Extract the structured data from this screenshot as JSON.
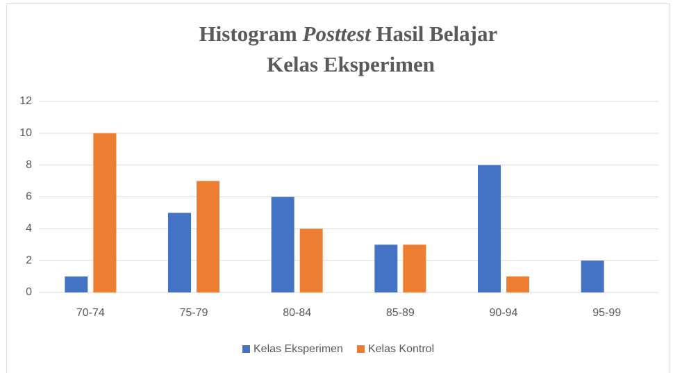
{
  "chart_data": {
    "type": "bar",
    "title": [
      "Histogram",
      "Posttest",
      "Hasil Belajar",
      "Kelas Eksperimen"
    ],
    "categories": [
      "70-74",
      "75-79",
      "80-84",
      "85-89",
      "90-94",
      "95-99"
    ],
    "series": [
      {
        "name": "Kelas Eksperimen",
        "color": "#4472c4",
        "values": [
          1,
          5,
          6,
          3,
          8,
          2
        ]
      },
      {
        "name": "Kelas Kontrol",
        "color": "#ed7d31",
        "values": [
          10,
          7,
          4,
          3,
          1,
          0
        ]
      }
    ],
    "ylim": [
      0,
      12
    ],
    "yticks": [
      0,
      2,
      4,
      6,
      8,
      10,
      12
    ],
    "grid": true,
    "legend": "bottom"
  }
}
